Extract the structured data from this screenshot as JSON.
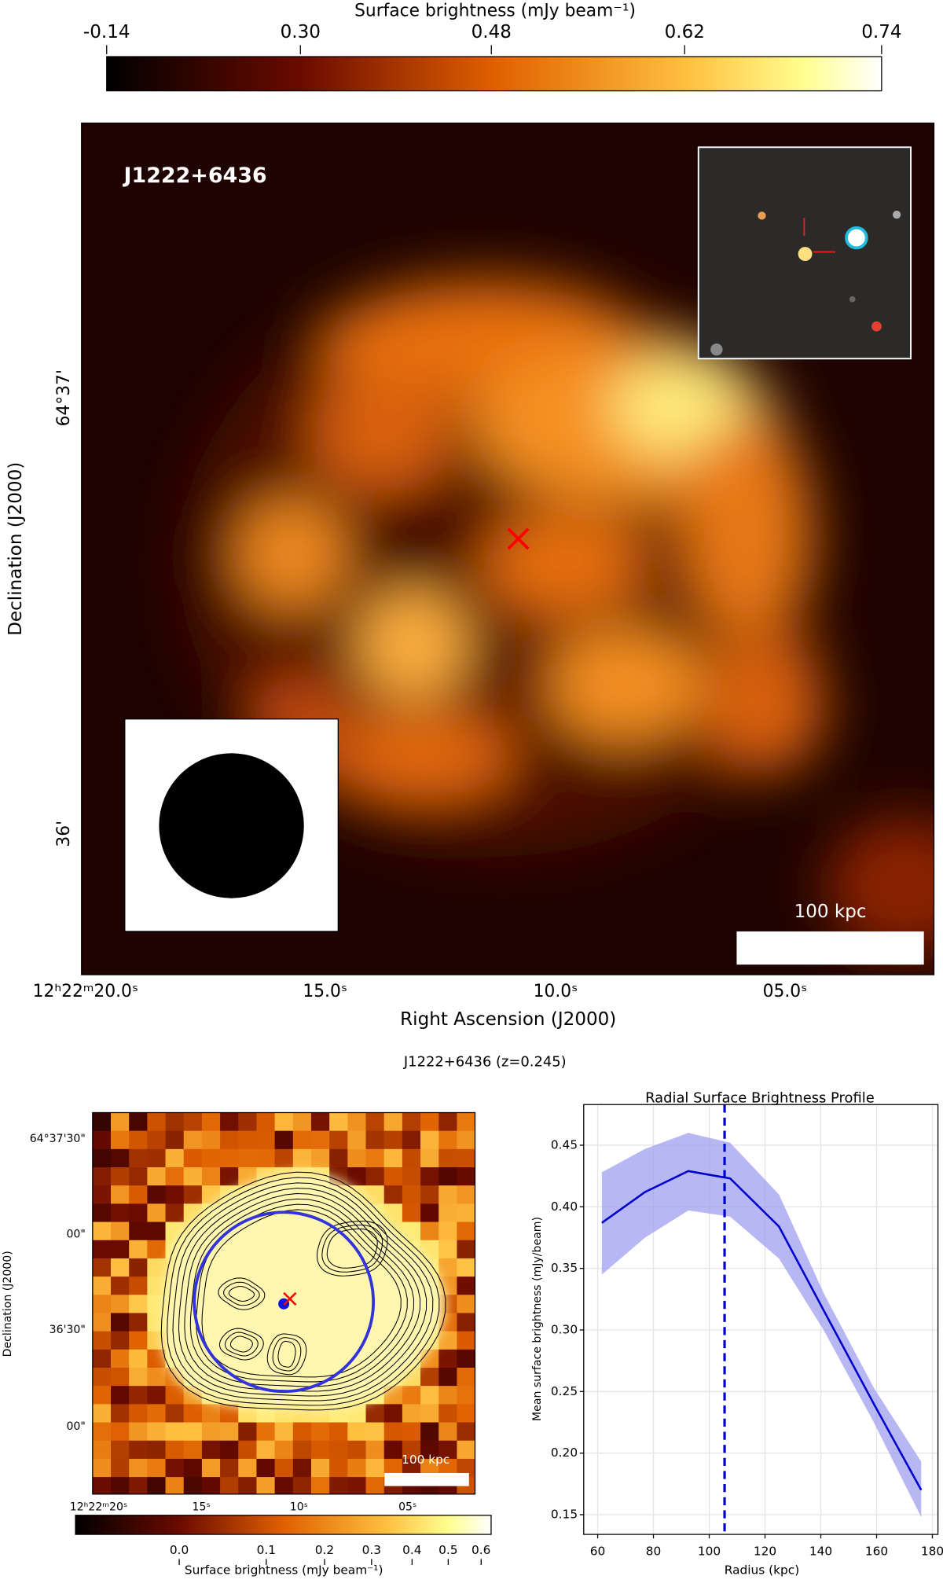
{
  "top_panel": {
    "colorbar": {
      "label": "Surface brightness (mJy beam⁻¹)",
      "lim": [
        -0.14,
        0.74
      ],
      "scale": "squared",
      "ticks": [
        -0.14,
        {
          "value": 0.3,
          "label": "0.30"
        },
        0.48,
        0.62,
        0.74
      ]
    },
    "source_name": "J1222+6436",
    "scale_bar": "100 kpc",
    "x_label": "Right Ascension (J2000)",
    "y_label": "Declination (J2000)",
    "x_tick_labels": [
      "12ʰ22ᵐ20.0ˢ",
      "15.0ˢ",
      "10.0ˢ",
      "05.0ˢ"
    ],
    "y_tick_labels": [
      "64°37'",
      "36'"
    ]
  },
  "figure_title": "J1222+6436 (z=0.245)",
  "bottom_left": {
    "y_label": "Declination (J2000)",
    "x_tick_labels": [
      "12ʰ22ᵐ20ˢ",
      "15ˢ",
      "10ˢ",
      "05ˢ"
    ],
    "y_tick_labels": [
      "64°37'30\"",
      "00\"",
      "36'30\"",
      "00\""
    ],
    "scale_bar": "100 kpc",
    "colorbar": {
      "label": "Surface brightness (mJy beam⁻¹)",
      "lim": [
        -0.042,
        0.632
      ],
      "scale": "sqrt",
      "ticks": [
        {
          "value": 0,
          "label": "0.0"
        },
        0.1,
        0.2,
        0.3,
        0.4,
        0.5,
        0.6
      ]
    }
  },
  "chart_data": {
    "type": "line",
    "title": "Radial Surface Brightness Profile",
    "x_label": "Radius (kpc)",
    "y_label": "Mean surface brightness (mJy/beam)",
    "x": [
      61.5,
      77,
      92.5,
      107.5,
      125,
      141,
      159,
      176
    ],
    "series": [
      {
        "color": "#0000cc",
        "band_color": "#9999ee",
        "values": [
          0.387,
          0.412,
          0.429,
          0.423,
          0.384,
          0.316,
          0.24,
          0.17
        ],
        "upper": [
          0.428,
          0.447,
          0.46,
          0.452,
          0.41,
          0.33,
          0.253,
          0.193
        ],
        "lower": [
          0.345,
          0.375,
          0.397,
          0.392,
          0.358,
          0.3,
          0.225,
          0.148
        ]
      }
    ],
    "vline": 105.5,
    "xlim": [
      55,
      182
    ],
    "ylim": [
      0.134,
      0.483
    ],
    "xticks": [
      60,
      80,
      100,
      120,
      140,
      160,
      180
    ],
    "yticks": [
      0.15,
      {
        "value": 0.2,
        "label": "0.20"
      },
      0.25,
      {
        "value": 0.3,
        "label": "0.30"
      },
      0.35,
      {
        "value": 0.4,
        "label": "0.40"
      },
      0.45
    ],
    "grid": true
  }
}
